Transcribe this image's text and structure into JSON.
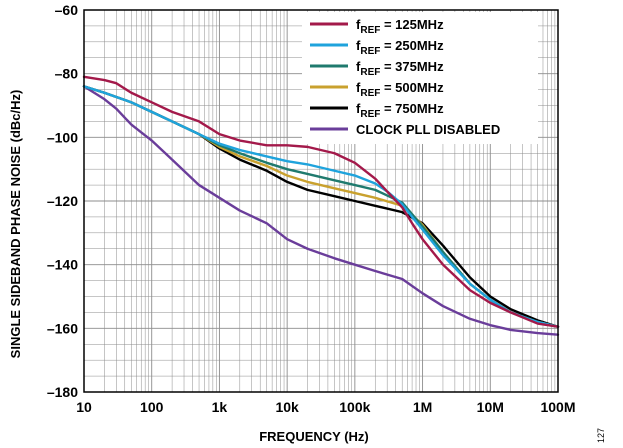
{
  "figure_id": "127",
  "colors": {
    "grid": "#8c8c8c",
    "frame": "#000000"
  },
  "chart_data": {
    "type": "line",
    "xlabel": "FREQUENCY (Hz)",
    "ylabel": "SINGLE SIDEBAND PHASE NOISE (dBc/Hz)",
    "xscale": "log",
    "xlim": [
      10,
      100000000
    ],
    "ylim": [
      -180,
      -60
    ],
    "grid": true,
    "legend_position": "top-right",
    "x_ticks": [
      {
        "value": 10,
        "label": "10"
      },
      {
        "value": 100,
        "label": "100"
      },
      {
        "value": 1000,
        "label": "1k"
      },
      {
        "value": 10000,
        "label": "10k"
      },
      {
        "value": 100000,
        "label": "100k"
      },
      {
        "value": 1000000,
        "label": "1M"
      },
      {
        "value": 10000000,
        "label": "10M"
      },
      {
        "value": 100000000,
        "label": "100M"
      }
    ],
    "y_ticks": [
      {
        "value": -60,
        "label": "–60"
      },
      {
        "value": -80,
        "label": "–80"
      },
      {
        "value": -100,
        "label": "–100"
      },
      {
        "value": -120,
        "label": "–120"
      },
      {
        "value": -140,
        "label": "–140"
      },
      {
        "value": -160,
        "label": "–160"
      },
      {
        "value": -180,
        "label": "–180"
      }
    ],
    "series": [
      {
        "name": "f",
        "sub": "REF",
        "suffix": " = 125MHz",
        "color": "#a3194a",
        "x": [
          10,
          20,
          30,
          50,
          100,
          200,
          500,
          1000,
          2000,
          5000,
          10000,
          20000,
          50000,
          100000,
          200000,
          300000,
          500000,
          700000,
          1000000,
          2000000,
          5000000,
          10000000,
          20000000,
          50000000,
          100000000
        ],
        "y": [
          -81,
          -82,
          -83,
          -86,
          -89,
          -92,
          -95,
          -99,
          -101,
          -102.5,
          -102.5,
          -103,
          -105,
          -108,
          -113,
          -117,
          -122,
          -127,
          -132,
          -140,
          -148,
          -152,
          -155,
          -158.5,
          -159.5
        ]
      },
      {
        "name": "f",
        "sub": "REF",
        "suffix": " = 250MHz",
        "color": "#1fa3dc",
        "x": [
          10,
          20,
          50,
          100,
          200,
          500,
          1000,
          2000,
          5000,
          10000,
          20000,
          50000,
          100000,
          200000,
          300000,
          500000,
          700000,
          1000000,
          2000000,
          5000000,
          10000000,
          20000000,
          50000000,
          100000000
        ],
        "y": [
          -84,
          -86,
          -89,
          -92,
          -95,
          -99,
          -102,
          -104,
          -106,
          -107.5,
          -108.5,
          -110.5,
          -112,
          -114.5,
          -117,
          -121,
          -125,
          -129,
          -137,
          -146,
          -151,
          -155,
          -158,
          -159.5
        ]
      },
      {
        "name": "f",
        "sub": "REF",
        "suffix": " = 375MHz",
        "color": "#1f7a6e",
        "x": [
          10,
          20,
          50,
          100,
          200,
          500,
          1000,
          2000,
          5000,
          10000,
          20000,
          50000,
          100000,
          200000,
          500000,
          1000000,
          2000000,
          5000000,
          10000000,
          20000000,
          50000000,
          100000000
        ],
        "y": [
          -84,
          -86,
          -89,
          -92,
          -95,
          -99,
          -102.5,
          -105,
          -108,
          -110,
          -111.5,
          -113.5,
          -115,
          -116.5,
          -120.5,
          -128,
          -136,
          -146,
          -151,
          -155,
          -158,
          -159.5
        ]
      },
      {
        "name": "f",
        "sub": "REF",
        "suffix": " = 500MHz",
        "color": "#c9a12e",
        "x": [
          10,
          20,
          50,
          100,
          200,
          500,
          1000,
          2000,
          5000,
          10000,
          20000,
          50000,
          100000,
          200000,
          500000,
          1000000,
          2000000,
          5000000,
          10000000,
          20000000,
          50000000,
          100000000
        ],
        "y": [
          -84,
          -86,
          -89,
          -92,
          -95,
          -99,
          -103,
          -106,
          -109,
          -112,
          -114,
          -116,
          -117.5,
          -119,
          -121.5,
          -127.5,
          -136,
          -146,
          -151,
          -155,
          -158,
          -159.5
        ]
      },
      {
        "name": "f",
        "sub": "REF",
        "suffix": " = 750MHz",
        "color": "#000000",
        "x": [
          10,
          20,
          50,
          100,
          200,
          500,
          1000,
          2000,
          5000,
          10000,
          20000,
          50000,
          100000,
          200000,
          500000,
          1000000,
          2000000,
          5000000,
          10000000,
          20000000,
          50000000,
          100000000
        ],
        "y": [
          -84,
          -86,
          -89,
          -92,
          -95,
          -99,
          -103.5,
          -107,
          -110.5,
          -114,
          -116.5,
          -118.5,
          -120,
          -121.5,
          -123.5,
          -127,
          -134,
          -144,
          -150,
          -154,
          -157.5,
          -159.5
        ]
      },
      {
        "name": "CLOCK PLL DISABLED",
        "sub": "",
        "suffix": "",
        "color": "#6a3d9a",
        "x": [
          10,
          20,
          30,
          50,
          100,
          200,
          500,
          1000,
          2000,
          5000,
          10000,
          20000,
          50000,
          100000,
          200000,
          500000,
          1000000,
          2000000,
          5000000,
          10000000,
          20000000,
          50000000,
          100000000
        ],
        "y": [
          -84,
          -88,
          -91,
          -96,
          -101,
          -107,
          -115,
          -119,
          -123,
          -127,
          -132,
          -135,
          -138,
          -140,
          -142,
          -144.5,
          -149,
          -153,
          -157,
          -159,
          -160.5,
          -161.5,
          -162
        ]
      }
    ]
  }
}
